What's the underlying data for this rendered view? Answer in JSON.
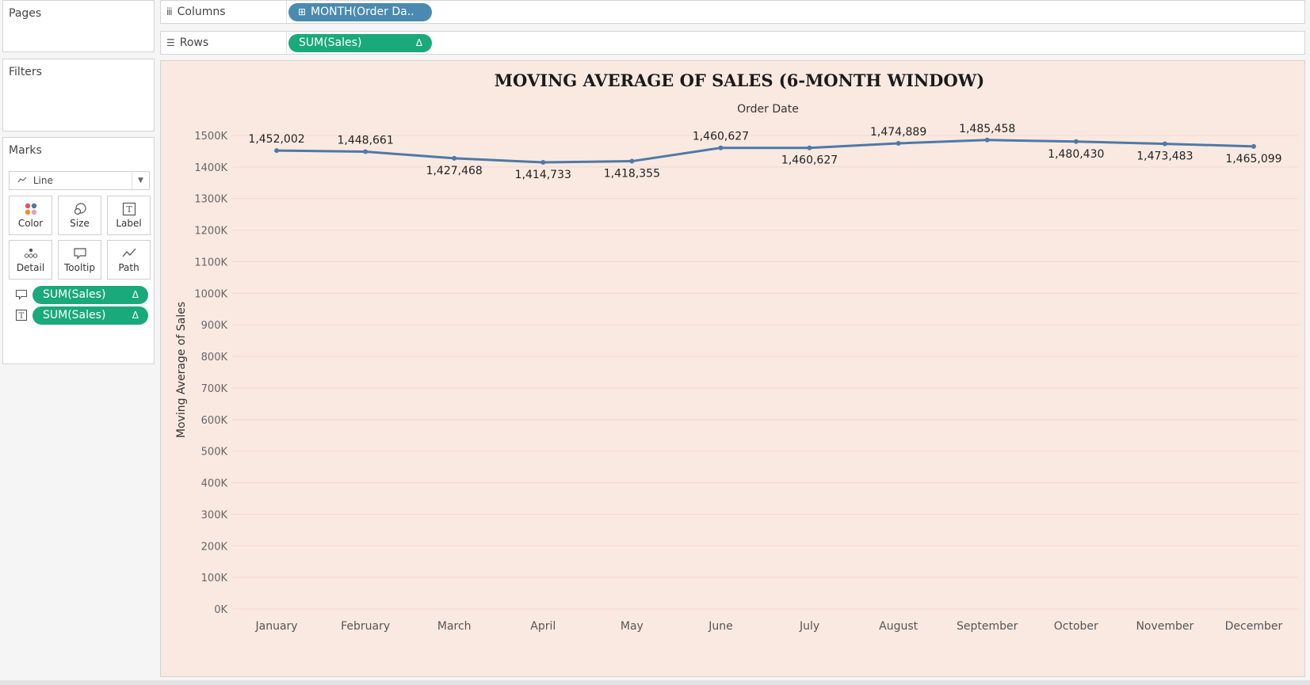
{
  "left_panel": {
    "pages_label": "Pages",
    "filters_label": "Filters",
    "marks_label": "Marks",
    "mark_type": "Line",
    "mark_type_icon": "line-icon",
    "mark_buttons": [
      {
        "label": "Color",
        "icon": "color-icon"
      },
      {
        "label": "Size",
        "icon": "size-icon"
      },
      {
        "label": "Label",
        "icon": "label-icon"
      },
      {
        "label": "Detail",
        "icon": "detail-icon"
      },
      {
        "label": "Tooltip",
        "icon": "tooltip-icon"
      },
      {
        "label": "Path",
        "icon": "path-icon"
      }
    ],
    "mark_pills": [
      {
        "label": "SUM(Sales)",
        "delta": "Δ",
        "icon": "tooltip-icon"
      },
      {
        "label": "SUM(Sales)",
        "delta": "Δ",
        "icon": "label-icon"
      }
    ]
  },
  "shelves": {
    "columns_label": "Columns",
    "columns_pill": "MONTH(Order Da..",
    "columns_pill_icon": "expand-plus-icon",
    "rows_label": "Rows",
    "rows_pill": "SUM(Sales)",
    "rows_pill_delta": "Δ"
  },
  "colors": {
    "green_pill": "#1aa97b",
    "blue_pill": "#4a8ab0",
    "chart_background": "#fae9e1",
    "line": "#4e79a7"
  },
  "chart_data": {
    "type": "line",
    "title": "MOVING AVERAGE OF SALES (6-MONTH WINDOW)",
    "xlabel": "Order Date",
    "ylabel": "Moving Average of Sales",
    "categories": [
      "January",
      "February",
      "March",
      "April",
      "May",
      "June",
      "July",
      "August",
      "September",
      "October",
      "November",
      "December"
    ],
    "values": [
      1452002,
      1448661,
      1427468,
      1414733,
      1418355,
      1460627,
      1460627,
      1474889,
      1485458,
      1480430,
      1473483,
      1465099
    ],
    "data_labels": [
      "1,452,002",
      "1,448,661",
      "1,427,468",
      "1,414,733",
      "1,418,355",
      "1,460,627",
      "1,460,627",
      "1,474,889",
      "1,485,458",
      "1,480,430",
      "1,473,483",
      "1,465,099"
    ],
    "label_positions": [
      "above",
      "above",
      "below",
      "below",
      "below",
      "above",
      "below",
      "above",
      "above",
      "below",
      "below",
      "below"
    ],
    "y_ticks": [
      0,
      100000,
      200000,
      300000,
      400000,
      500000,
      600000,
      700000,
      800000,
      900000,
      1000000,
      1100000,
      1200000,
      1300000,
      1400000,
      1500000
    ],
    "y_tick_labels": [
      "0K",
      "100K",
      "200K",
      "300K",
      "400K",
      "500K",
      "600K",
      "700K",
      "800K",
      "900K",
      "1000K",
      "1100K",
      "1200K",
      "1300K",
      "1400K",
      "1500K"
    ],
    "ylim": [
      0,
      1500000
    ],
    "grid": "horizontal"
  }
}
